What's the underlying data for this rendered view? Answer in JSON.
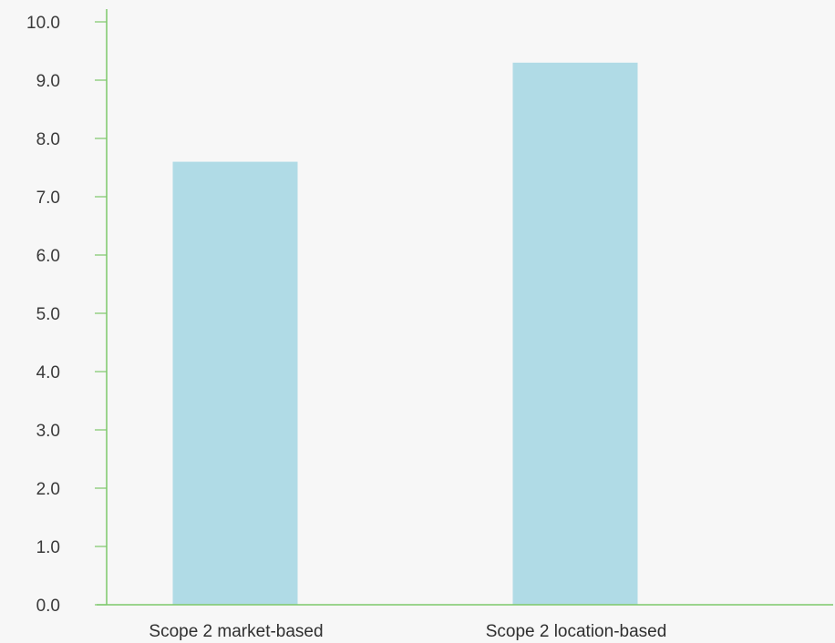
{
  "chart_data": {
    "type": "bar",
    "categories": [
      "Scope 2 market-based",
      "Scope 2 location-based"
    ],
    "values": [
      7.6,
      9.3
    ],
    "ylim": [
      0,
      10
    ],
    "yticks": [
      "0.0",
      "1.0",
      "2.0",
      "3.0",
      "4.0",
      "5.0",
      "6.0",
      "7.0",
      "8.0",
      "9.0",
      "10.0"
    ],
    "title": "",
    "xlabel": "",
    "ylabel": "",
    "grid": false,
    "colors": {
      "bar": "#b0dbe6",
      "axis": "#7dc86a",
      "background": "#f7f7f7"
    }
  }
}
